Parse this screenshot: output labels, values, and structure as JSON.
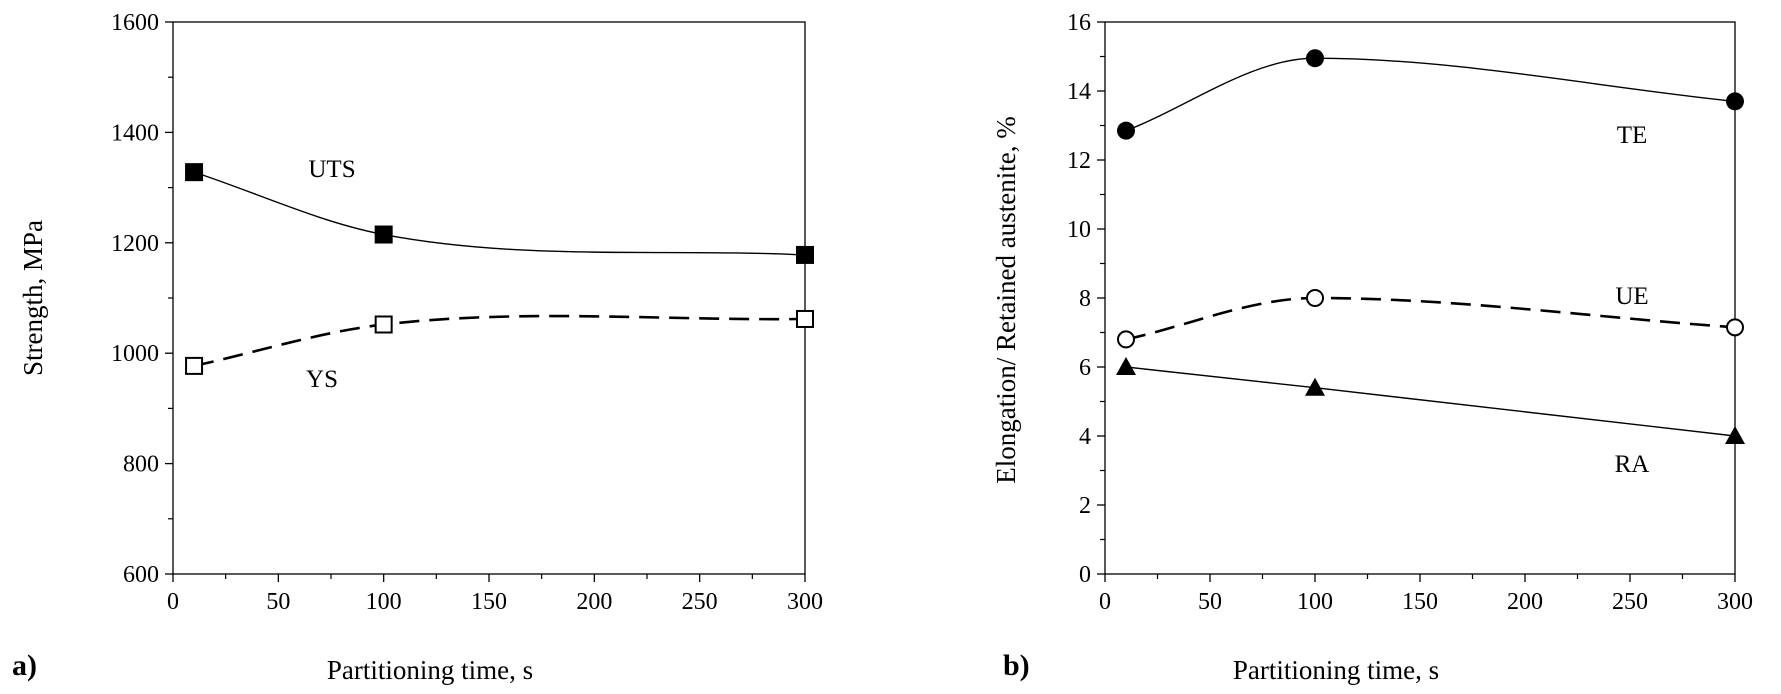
{
  "chart_data": [
    {
      "panel_label": "a)",
      "type": "line",
      "xlabel": "Partitioning time, s",
      "ylabel": "Strength, MPa",
      "xlim": [
        0,
        300
      ],
      "ylim": [
        600,
        1600
      ],
      "xticks": [
        0,
        50,
        100,
        150,
        200,
        250,
        300
      ],
      "yticks": [
        600,
        800,
        1000,
        1200,
        1400,
        1600
      ],
      "x": [
        10,
        100,
        300
      ],
      "series": [
        {
          "name": "UTS",
          "values": [
            1328,
            1215,
            1178
          ],
          "marker": "filled-square",
          "line": "solid"
        },
        {
          "name": "YS",
          "values": [
            977,
            1052,
            1062
          ],
          "marker": "open-square",
          "line": "dashed"
        }
      ],
      "grid": false
    },
    {
      "panel_label": "b)",
      "type": "line",
      "xlabel": "Partitioning time, s",
      "ylabel": "Elongation/ Retained austenite, %",
      "xlim": [
        0,
        300
      ],
      "ylim": [
        0,
        16
      ],
      "xticks": [
        0,
        50,
        100,
        150,
        200,
        250,
        300
      ],
      "yticks": [
        0,
        2,
        4,
        6,
        8,
        10,
        12,
        14,
        16
      ],
      "x": [
        10,
        100,
        300
      ],
      "series": [
        {
          "name": "TE",
          "values": [
            12.85,
            14.95,
            13.7
          ],
          "marker": "filled-circle",
          "line": "solid"
        },
        {
          "name": "UE",
          "values": [
            6.8,
            8.0,
            7.15
          ],
          "marker": "open-circle",
          "line": "dashed"
        },
        {
          "name": "RA",
          "values": [
            6.0,
            5.4,
            4.0
          ],
          "marker": "filled-triangle",
          "line": "solid"
        }
      ],
      "grid": false
    }
  ]
}
